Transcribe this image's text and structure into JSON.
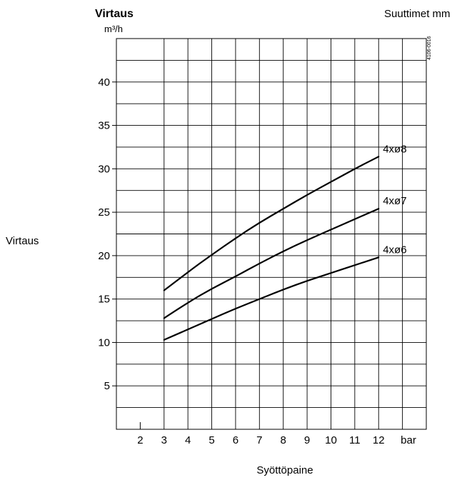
{
  "chart_data": {
    "type": "line",
    "title": "Virtaus",
    "unit_label": "m³/h",
    "top_right_label": "Suuttimet mm",
    "ylabel": "Virtaus",
    "xlabel": "Syöttöpaine",
    "x_unit": "bar",
    "code": "4106-0016",
    "grid": true,
    "xlim": [
      1,
      14
    ],
    "ylim": [
      0,
      45
    ],
    "x_ticks": [
      2,
      3,
      4,
      5,
      6,
      7,
      8,
      9,
      10,
      11,
      12
    ],
    "y_ticks": [
      5,
      10,
      15,
      20,
      25,
      30,
      35,
      40
    ],
    "series": [
      {
        "name": "4xø8",
        "x": [
          3,
          4,
          5,
          6,
          7,
          8,
          9,
          10,
          11,
          12
        ],
        "values": [
          16.0,
          18.1,
          20.1,
          22.0,
          23.8,
          25.4,
          27.0,
          28.5,
          30.0,
          31.4
        ]
      },
      {
        "name": "4xø7",
        "x": [
          3,
          4,
          5,
          6,
          7,
          8,
          9,
          10,
          11,
          12
        ],
        "values": [
          12.8,
          14.6,
          16.2,
          17.6,
          19.1,
          20.5,
          21.8,
          23.0,
          24.2,
          25.4
        ]
      },
      {
        "name": "4xø6",
        "x": [
          3,
          4,
          5,
          6,
          7,
          8,
          9,
          10,
          11,
          12
        ],
        "values": [
          10.3,
          11.5,
          12.7,
          13.9,
          15.0,
          16.1,
          17.1,
          18.0,
          18.9,
          19.8
        ]
      }
    ]
  }
}
